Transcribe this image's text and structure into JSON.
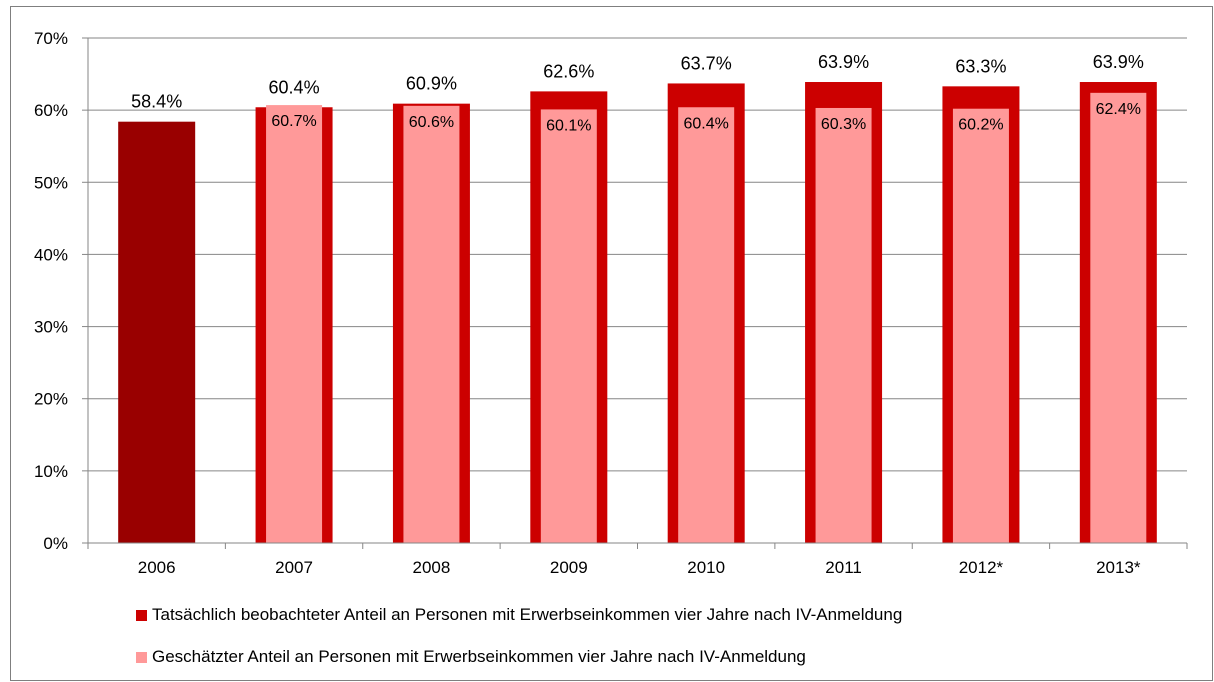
{
  "chart_data": {
    "type": "bar",
    "categories": [
      "2006",
      "2007",
      "2008",
      "2009",
      "2010",
      "2011",
      "2012*",
      "2013*"
    ],
    "series": [
      {
        "name": "Tatsächlich beobachteter Anteil an Personen mit Erwerbseinkommen vier Jahre nach IV-Anmeldung",
        "values": [
          58.4,
          60.4,
          60.9,
          62.6,
          63.7,
          63.9,
          63.3,
          63.9
        ],
        "labels": [
          "58.4%",
          "60.4%",
          "60.9%",
          "62.6%",
          "63.7%",
          "63.9%",
          "63.3%",
          "63.9%"
        ],
        "color": "#cc0000",
        "first_bar_color": "#990000"
      },
      {
        "name": "Geschätzter Anteil an Personen mit Erwerbseinkommen vier Jahre nach IV-Anmeldung",
        "values": [
          null,
          60.7,
          60.6,
          60.1,
          60.4,
          60.3,
          60.2,
          62.4
        ],
        "labels": [
          "",
          "60.7%",
          "60.6%",
          "60.1%",
          "60.4%",
          "60.3%",
          "60.2%",
          "62.4%"
        ],
        "color": "#ff9999"
      }
    ],
    "yticks": [
      "0%",
      "10%",
      "20%",
      "30%",
      "40%",
      "50%",
      "60%",
      "70%"
    ],
    "ylim": [
      0,
      70
    ],
    "grid": true,
    "legend_position": "bottom"
  }
}
